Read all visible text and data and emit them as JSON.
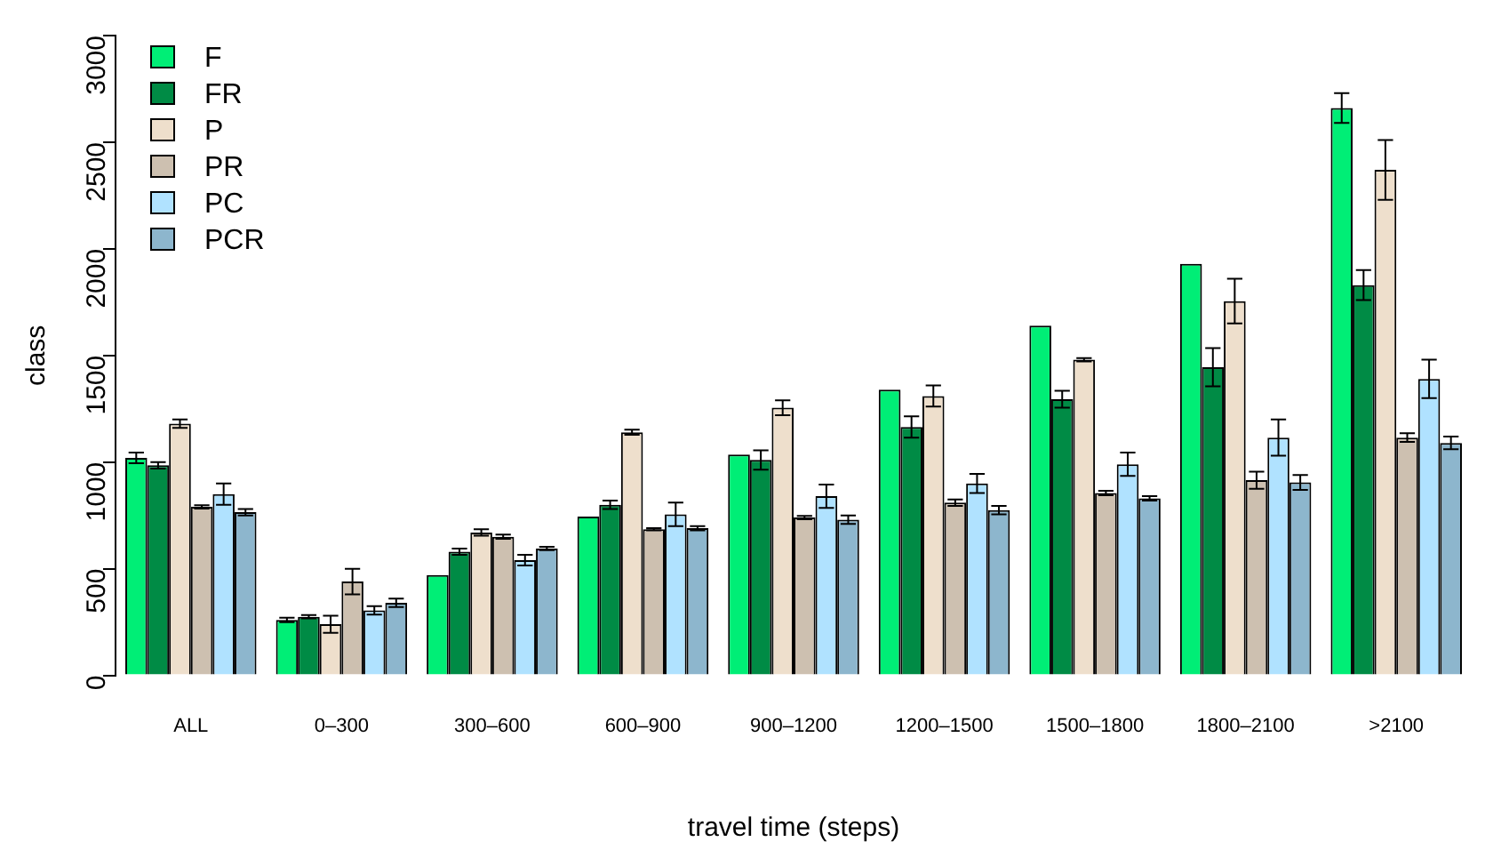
{
  "chart_data": {
    "type": "bar",
    "xlabel": "travel time (steps)",
    "ylabel": "class",
    "categories": [
      "ALL",
      "0–300",
      "300–600",
      "600–900",
      "900–1200",
      "1200–1500",
      "1500–1800",
      "1800–2100",
      ">2100"
    ],
    "series": [
      {
        "name": "F",
        "color": "#00ee76",
        "values": [
          1020,
          260,
          470,
          745,
          1035,
          1340,
          1640,
          1930,
          2660
        ],
        "errors": [
          25,
          10,
          null,
          null,
          null,
          null,
          null,
          null,
          70
        ]
      },
      {
        "name": "FR",
        "color": "#008b45",
        "values": [
          985,
          275,
          580,
          800,
          1010,
          1165,
          1295,
          1445,
          1830
        ],
        "errors": [
          15,
          8,
          15,
          20,
          45,
          50,
          40,
          90,
          70
        ]
      },
      {
        "name": "P",
        "color": "#eedfcc",
        "values": [
          1180,
          240,
          670,
          1140,
          1255,
          1310,
          1480,
          1755,
          2370
        ],
        "errors": [
          20,
          40,
          15,
          12,
          35,
          50,
          8,
          105,
          140
        ]
      },
      {
        "name": "PR",
        "color": "#cdc0b0",
        "values": [
          790,
          440,
          650,
          685,
          740,
          810,
          855,
          915,
          1115
        ],
        "errors": [
          8,
          60,
          10,
          5,
          8,
          15,
          10,
          40,
          20
        ]
      },
      {
        "name": "PC",
        "color": "#b0e2ff",
        "values": [
          850,
          305,
          540,
          755,
          840,
          900,
          990,
          1115,
          1390
        ],
        "errors": [
          50,
          20,
          25,
          55,
          55,
          45,
          55,
          85,
          90
        ]
      },
      {
        "name": "PCR",
        "color": "#8db6cd",
        "values": [
          765,
          340,
          595,
          690,
          730,
          775,
          830,
          905,
          1090
        ],
        "errors": [
          15,
          20,
          8,
          10,
          20,
          20,
          10,
          35,
          30
        ]
      }
    ],
    "ylim": [
      0,
      3000
    ],
    "yticks": [
      0,
      500,
      1000,
      1500,
      2000,
      2500,
      3000
    ],
    "grid": false,
    "legend": "top left"
  }
}
